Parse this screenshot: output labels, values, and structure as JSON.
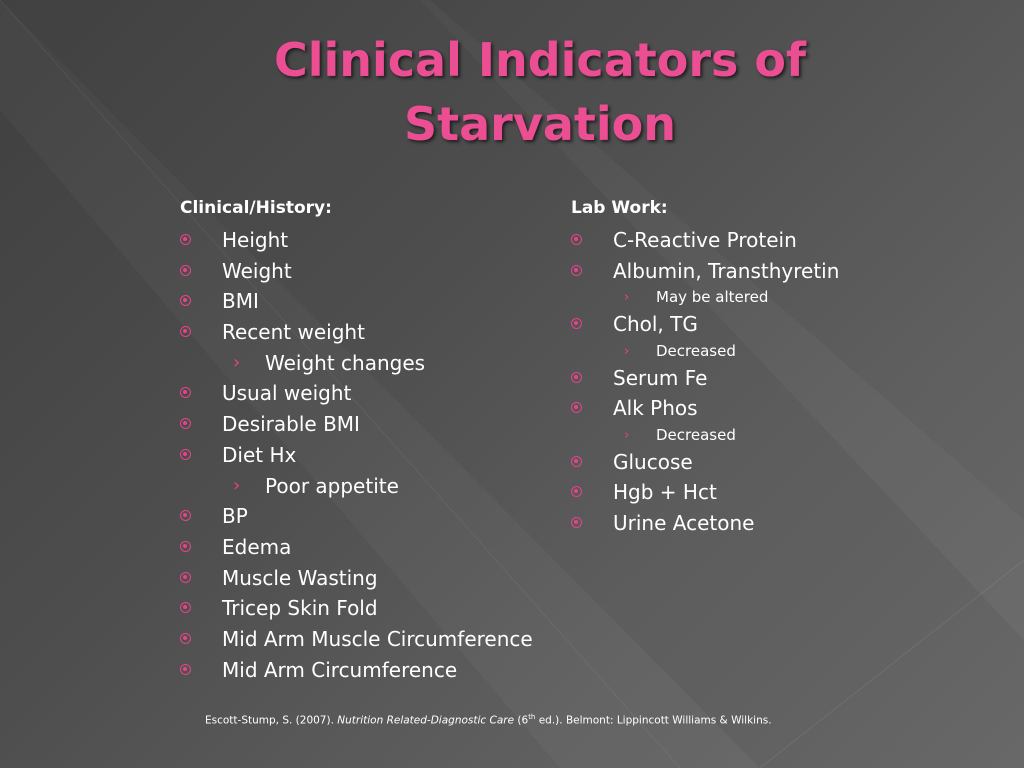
{
  "title": {
    "line1": "Clinical Indicators of",
    "line2": "Starvation"
  },
  "left": {
    "heading": "Clinical/History:",
    "items": [
      {
        "text": "Height",
        "level": 1
      },
      {
        "text": "Weight",
        "level": 1
      },
      {
        "text": "BMI",
        "level": 1
      },
      {
        "text": "Recent weight",
        "level": 1
      },
      {
        "text": "Weight changes",
        "level": 2
      },
      {
        "text": "Usual weight",
        "level": 1
      },
      {
        "text": "Desirable BMI",
        "level": 1
      },
      {
        "text": "Diet Hx",
        "level": 1
      },
      {
        "text": "Poor appetite",
        "level": 2
      },
      {
        "text": "BP",
        "level": 1
      },
      {
        "text": "Edema",
        "level": 1
      },
      {
        "text": "Muscle Wasting",
        "level": 1
      },
      {
        "text": "Tricep Skin Fold",
        "level": 1
      },
      {
        "text": "Mid Arm Muscle Circumference",
        "level": 1
      },
      {
        "text": "Mid Arm Circumference",
        "level": 1
      }
    ]
  },
  "right": {
    "heading": "Lab Work:",
    "items": [
      {
        "text": "C-Reactive Protein",
        "level": 1
      },
      {
        "text": "Albumin, Transthyretin",
        "level": 1
      },
      {
        "text": "May be altered",
        "level": 3
      },
      {
        "text": "Chol, TG",
        "level": 1
      },
      {
        "text": "Decreased",
        "level": 3
      },
      {
        "text": "Serum Fe",
        "level": 1
      },
      {
        "text": "Alk Phos",
        "level": 1
      },
      {
        "text": "Decreased",
        "level": 3
      },
      {
        "text": "Glucose",
        "level": 1
      },
      {
        "text": "Hgb + Hct",
        "level": 1
      },
      {
        "text": "Urine Acetone",
        "level": 1
      }
    ]
  },
  "citation": {
    "author": "Escott-Stump, S. (2007). ",
    "book": "Nutrition Related-Diagnostic Care",
    "ed_open": " (6",
    "ed_sup": "th",
    "ed_close": " ed.). Belmont: Lippincott Williams & Wilkins."
  },
  "colors": {
    "title": "#ec4e93",
    "bullet": "#e8428a",
    "text": "#ffffff"
  }
}
